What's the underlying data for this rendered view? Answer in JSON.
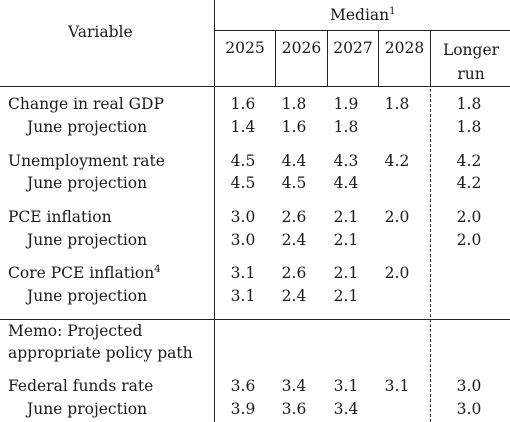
{
  "header": {
    "variable": "Variable",
    "median": "Median",
    "median_note": "1",
    "years": [
      "2025",
      "2026",
      "2027",
      "2028"
    ],
    "longer_run_line1": "Longer",
    "longer_run_line2": "run"
  },
  "rows": [
    {
      "label": "Change in real GDP",
      "values": [
        "1.6",
        "1.8",
        "1.9",
        "1.8"
      ],
      "longer": "1.8"
    },
    {
      "label": "June projection",
      "values": [
        "1.4",
        "1.6",
        "1.8",
        ""
      ],
      "longer": "1.8"
    },
    {
      "label": "Unemployment rate",
      "values": [
        "4.5",
        "4.4",
        "4.3",
        "4.2"
      ],
      "longer": "4.2"
    },
    {
      "label": "June projection",
      "values": [
        "4.5",
        "4.5",
        "4.4",
        ""
      ],
      "longer": "4.2"
    },
    {
      "label": "PCE inflation",
      "values": [
        "3.0",
        "2.6",
        "2.1",
        "2.0"
      ],
      "longer": "2.0"
    },
    {
      "label": "June projection",
      "values": [
        "3.0",
        "2.4",
        "2.1",
        ""
      ],
      "longer": "2.0"
    },
    {
      "label": "Core PCE inflation",
      "note": "4",
      "values": [
        "3.1",
        "2.6",
        "2.1",
        "2.0"
      ],
      "longer": ""
    },
    {
      "label": "June projection",
      "values": [
        "3.1",
        "2.4",
        "2.1",
        ""
      ],
      "longer": ""
    }
  ],
  "memo": {
    "line1": "Memo: Projected",
    "line2": "appropriate policy path"
  },
  "memo_rows": [
    {
      "label": "Federal funds rate",
      "values": [
        "3.6",
        "3.4",
        "3.1",
        "3.1"
      ],
      "longer": "3.0"
    },
    {
      "label": "June projection",
      "values": [
        "3.9",
        "3.6",
        "3.4",
        ""
      ],
      "longer": "3.0"
    }
  ]
}
